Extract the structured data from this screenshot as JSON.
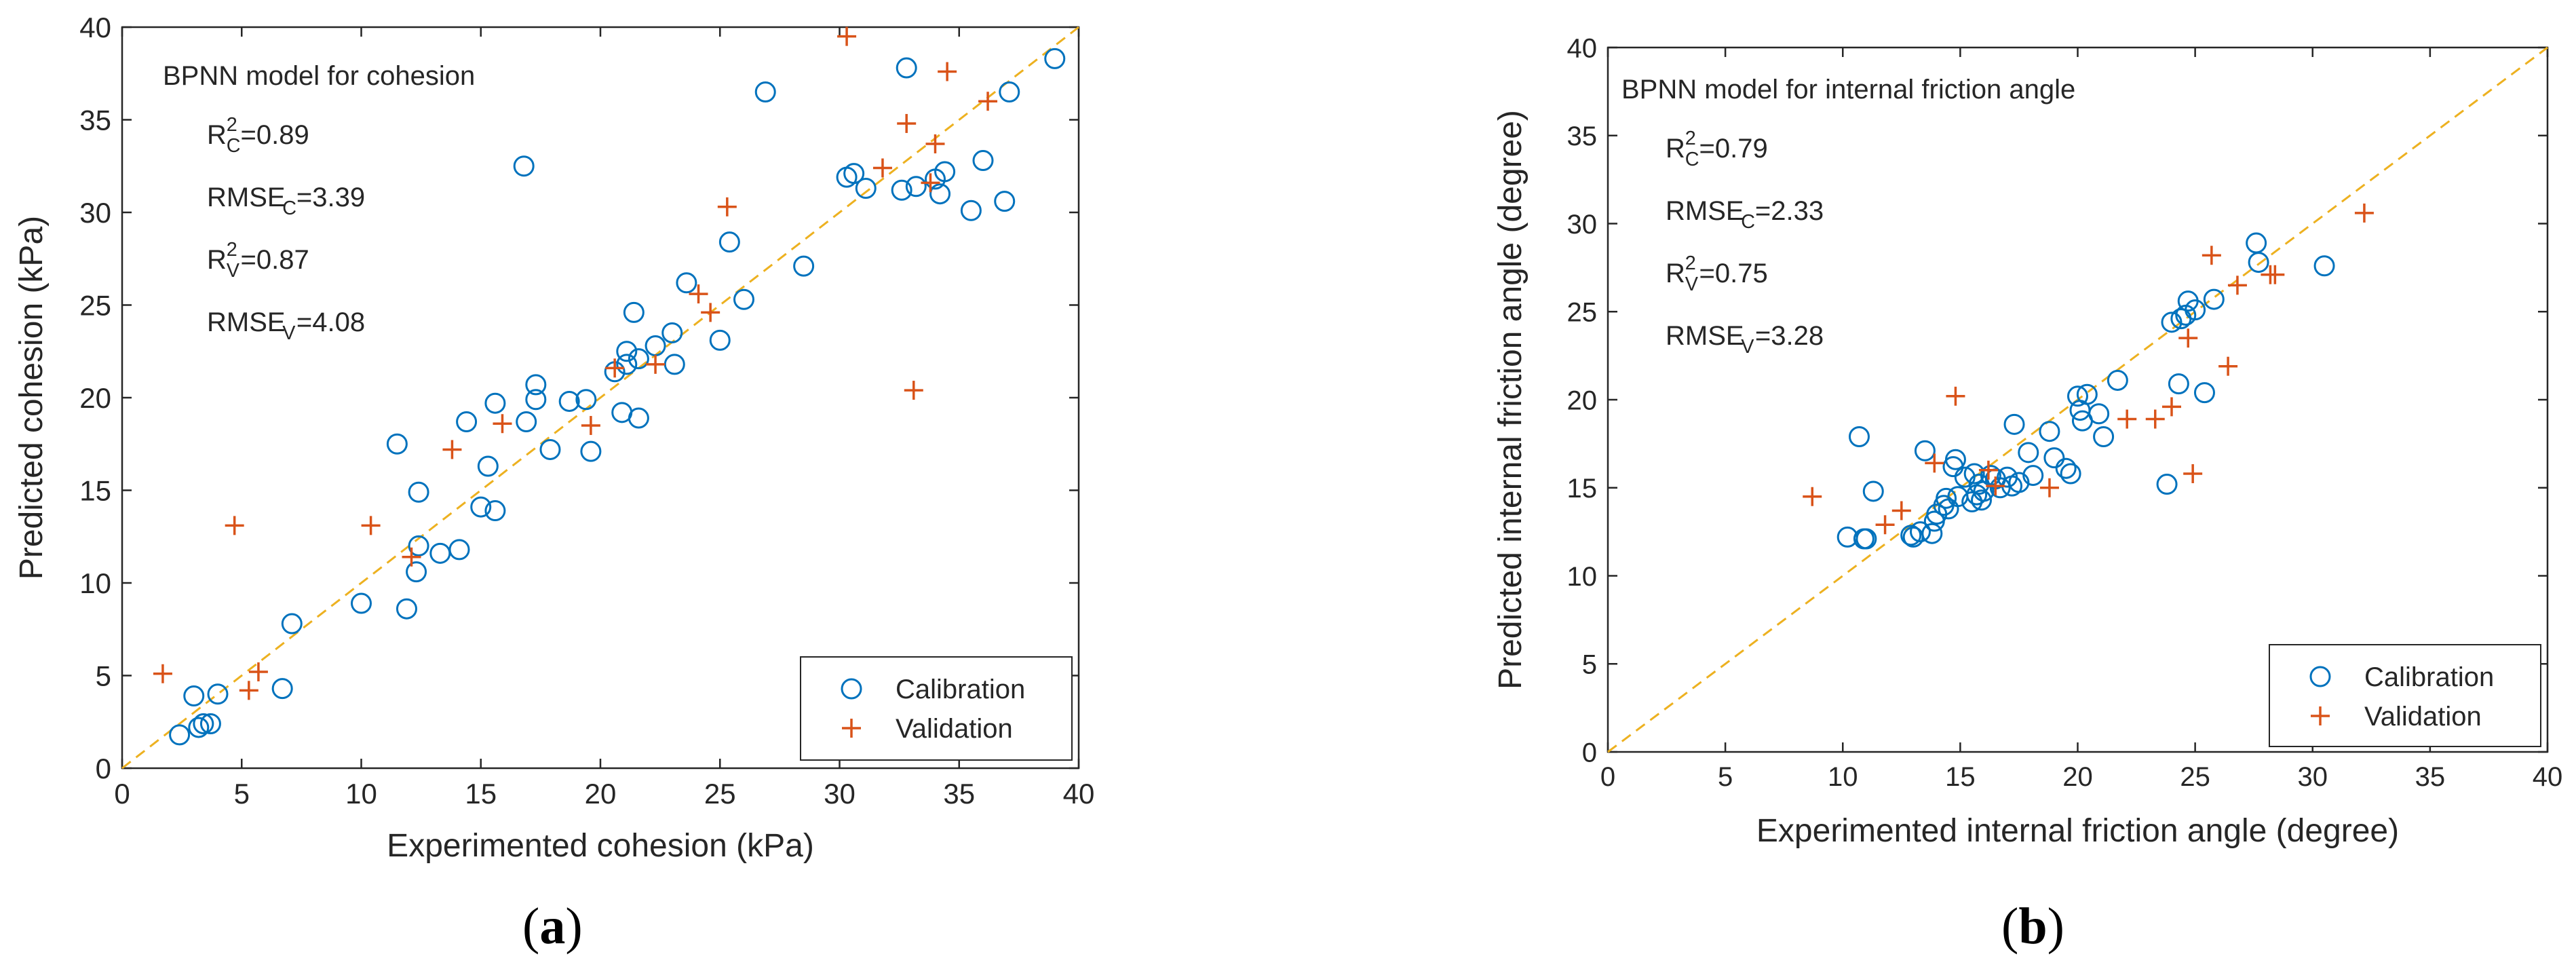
{
  "figure": {
    "panel_labels": {
      "a": "a",
      "b": "b"
    }
  },
  "chart_data": [
    {
      "id": "a",
      "type": "scatter",
      "title": "BPNN model for cohesion",
      "xlabel": "Experimented cohesion (kPa)",
      "ylabel": "Predicted cohesion (kPa)",
      "xlim": [
        0,
        40
      ],
      "ylim": [
        0,
        40
      ],
      "xticks": [
        0,
        5,
        10,
        15,
        20,
        25,
        30,
        35,
        40
      ],
      "yticks": [
        0,
        5,
        10,
        15,
        20,
        25,
        30,
        35,
        40
      ],
      "grid": false,
      "legend_position": "bottom-right",
      "colors": {
        "calibration": "#0072BD",
        "validation": "#D95319",
        "reference": "#EDB120",
        "axis": "#262626"
      },
      "annotations": [
        {
          "base": "R",
          "sup": "2",
          "sub": "C",
          "value": "=0.89"
        },
        {
          "base": "RMSE",
          "sup": "",
          "sub": "C",
          "value": "=3.39"
        },
        {
          "base": "R",
          "sup": "2",
          "sub": "V",
          "value": "=0.87"
        },
        {
          "base": "RMSE",
          "sup": "",
          "sub": "V",
          "value": "=4.08"
        }
      ],
      "reference_line": {
        "x": [
          0,
          40
        ],
        "y": [
          0,
          40
        ]
      },
      "series": [
        {
          "name": "Calibration",
          "marker": "circle",
          "points": [
            [
              2.4,
              1.8
            ],
            [
              3.0,
              3.9
            ],
            [
              3.2,
              2.2
            ],
            [
              3.4,
              2.4
            ],
            [
              3.7,
              2.4
            ],
            [
              4.0,
              4.0
            ],
            [
              6.7,
              4.3
            ],
            [
              7.1,
              7.8
            ],
            [
              10.0,
              8.9
            ],
            [
              11.5,
              17.5
            ],
            [
              11.9,
              8.6
            ],
            [
              12.3,
              10.6
            ],
            [
              12.4,
              12.0
            ],
            [
              12.4,
              14.9
            ],
            [
              13.3,
              11.6
            ],
            [
              14.1,
              11.8
            ],
            [
              14.4,
              18.7
            ],
            [
              15.0,
              14.1
            ],
            [
              15.3,
              16.3
            ],
            [
              15.6,
              13.9
            ],
            [
              15.6,
              19.7
            ],
            [
              16.8,
              32.5
            ],
            [
              16.9,
              18.7
            ],
            [
              17.3,
              20.7
            ],
            [
              17.3,
              19.9
            ],
            [
              17.9,
              17.2
            ],
            [
              18.7,
              19.8
            ],
            [
              19.4,
              19.9
            ],
            [
              19.6,
              17.1
            ],
            [
              20.6,
              21.4
            ],
            [
              20.9,
              19.2
            ],
            [
              21.1,
              22.5
            ],
            [
              21.1,
              21.8
            ],
            [
              21.4,
              24.6
            ],
            [
              21.6,
              18.9
            ],
            [
              21.6,
              22.1
            ],
            [
              22.3,
              22.8
            ],
            [
              23.0,
              23.5
            ],
            [
              23.1,
              21.8
            ],
            [
              23.6,
              26.2
            ],
            [
              25.0,
              23.1
            ],
            [
              25.4,
              28.4
            ],
            [
              26.0,
              25.3
            ],
            [
              26.9,
              36.5
            ],
            [
              28.5,
              27.1
            ],
            [
              30.3,
              31.9
            ],
            [
              30.6,
              32.1
            ],
            [
              31.1,
              31.3
            ],
            [
              32.6,
              31.2
            ],
            [
              32.8,
              37.8
            ],
            [
              33.2,
              31.4
            ],
            [
              34.0,
              31.8
            ],
            [
              34.2,
              31.0
            ],
            [
              34.4,
              32.2
            ],
            [
              35.5,
              30.1
            ],
            [
              36.0,
              32.8
            ],
            [
              36.9,
              30.6
            ],
            [
              37.1,
              36.5
            ],
            [
              39.0,
              38.3
            ]
          ]
        },
        {
          "name": "Validation",
          "marker": "plus",
          "points": [
            [
              1.7,
              5.1
            ],
            [
              4.7,
              13.1
            ],
            [
              5.3,
              4.2
            ],
            [
              5.7,
              5.2
            ],
            [
              10.4,
              13.1
            ],
            [
              12.1,
              11.4
            ],
            [
              13.8,
              17.2
            ],
            [
              15.9,
              18.6
            ],
            [
              19.6,
              18.5
            ],
            [
              20.6,
              21.6
            ],
            [
              22.3,
              21.8
            ],
            [
              24.1,
              25.6
            ],
            [
              24.6,
              24.6
            ],
            [
              25.3,
              30.3
            ],
            [
              30.3,
              39.5
            ],
            [
              31.8,
              32.4
            ],
            [
              32.8,
              34.8
            ],
            [
              33.1,
              20.4
            ],
            [
              33.8,
              31.6
            ],
            [
              34.0,
              33.7
            ],
            [
              34.5,
              37.6
            ],
            [
              36.2,
              36.0
            ]
          ]
        }
      ]
    },
    {
      "id": "b",
      "type": "scatter",
      "title": "BPNN model for internal friction angle",
      "xlabel": "Experimented internal friction angle (degree)",
      "ylabel": "Predicted internal friction angle (degree)",
      "xlim": [
        0,
        40
      ],
      "ylim": [
        0,
        40
      ],
      "xticks": [
        0,
        5,
        10,
        15,
        20,
        25,
        30,
        35,
        40
      ],
      "yticks": [
        0,
        5,
        10,
        15,
        20,
        25,
        30,
        35,
        40
      ],
      "grid": false,
      "legend_position": "bottom-right",
      "colors": {
        "calibration": "#0072BD",
        "validation": "#D95319",
        "reference": "#EDB120",
        "axis": "#262626"
      },
      "annotations": [
        {
          "base": "R",
          "sup": "2",
          "sub": "C",
          "value": "=0.79"
        },
        {
          "base": "RMSE",
          "sup": "",
          "sub": "C",
          "value": "=2.33"
        },
        {
          "base": "R",
          "sup": "2",
          "sub": "V",
          "value": "=0.75"
        },
        {
          "base": "RMSE",
          "sup": "",
          "sub": "V",
          "value": "=3.28"
        }
      ],
      "reference_line": {
        "x": [
          0,
          40
        ],
        "y": [
          0,
          40
        ]
      },
      "series": [
        {
          "name": "Calibration",
          "marker": "circle",
          "points": [
            [
              10.2,
              12.2
            ],
            [
              10.7,
              17.9
            ],
            [
              10.9,
              12.1
            ],
            [
              11.0,
              12.1
            ],
            [
              11.3,
              14.8
            ],
            [
              12.9,
              12.3
            ],
            [
              13.0,
              12.2
            ],
            [
              13.3,
              12.5
            ],
            [
              13.5,
              17.1
            ],
            [
              13.8,
              12.4
            ],
            [
              13.9,
              13.1
            ],
            [
              14.0,
              13.5
            ],
            [
              14.3,
              14.0
            ],
            [
              14.4,
              14.4
            ],
            [
              14.5,
              13.8
            ],
            [
              14.7,
              16.2
            ],
            [
              14.8,
              16.6
            ],
            [
              14.9,
              14.5
            ],
            [
              15.2,
              15.6
            ],
            [
              15.5,
              14.2
            ],
            [
              15.6,
              15.8
            ],
            [
              15.7,
              14.6
            ],
            [
              15.8,
              15.2
            ],
            [
              15.9,
              14.3
            ],
            [
              16.0,
              14.8
            ],
            [
              16.3,
              15.7
            ],
            [
              16.5,
              15.5
            ],
            [
              16.7,
              15.0
            ],
            [
              17.0,
              15.6
            ],
            [
              17.2,
              15.1
            ],
            [
              17.3,
              18.6
            ],
            [
              17.5,
              15.3
            ],
            [
              17.9,
              17.0
            ],
            [
              18.1,
              15.7
            ],
            [
              18.8,
              18.2
            ],
            [
              19.0,
              16.7
            ],
            [
              19.5,
              16.1
            ],
            [
              19.7,
              15.8
            ],
            [
              20.0,
              20.2
            ],
            [
              20.1,
              19.4
            ],
            [
              20.2,
              18.8
            ],
            [
              20.4,
              20.3
            ],
            [
              20.9,
              19.2
            ],
            [
              21.1,
              17.9
            ],
            [
              21.7,
              21.1
            ],
            [
              23.8,
              15.2
            ],
            [
              24.0,
              24.4
            ],
            [
              24.3,
              20.9
            ],
            [
              24.4,
              24.6
            ],
            [
              24.6,
              24.8
            ],
            [
              24.7,
              25.6
            ],
            [
              25.0,
              25.1
            ],
            [
              25.4,
              20.4
            ],
            [
              25.8,
              25.7
            ],
            [
              27.6,
              28.9
            ],
            [
              27.7,
              27.8
            ],
            [
              30.5,
              27.6
            ]
          ]
        },
        {
          "name": "Validation",
          "marker": "plus",
          "points": [
            [
              8.7,
              14.5
            ],
            [
              11.8,
              12.9
            ],
            [
              12.5,
              13.7
            ],
            [
              13.9,
              16.4
            ],
            [
              14.8,
              20.2
            ],
            [
              16.2,
              16.0
            ],
            [
              16.5,
              15.1
            ],
            [
              18.8,
              15.0
            ],
            [
              22.1,
              18.9
            ],
            [
              23.3,
              18.9
            ],
            [
              24.0,
              19.6
            ],
            [
              24.7,
              23.5
            ],
            [
              24.9,
              15.8
            ],
            [
              25.7,
              28.2
            ],
            [
              26.4,
              21.9
            ],
            [
              26.8,
              26.5
            ],
            [
              28.2,
              27.1
            ],
            [
              28.4,
              27.1
            ],
            [
              32.2,
              30.6
            ]
          ]
        }
      ]
    }
  ]
}
